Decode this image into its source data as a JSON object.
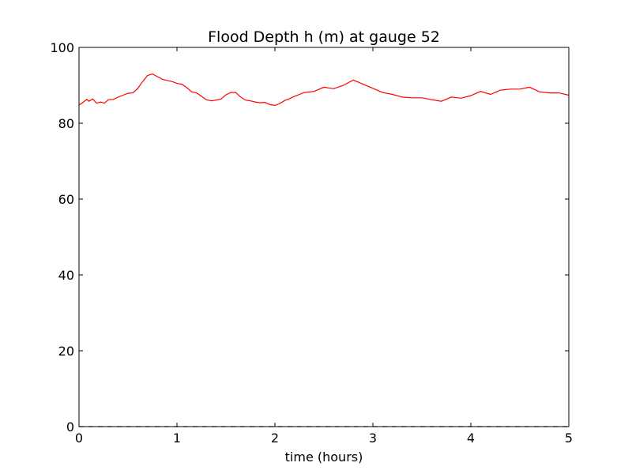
{
  "chart_data": {
    "type": "line",
    "title": "Flood Depth h (m) at gauge 52",
    "xlabel": "time (hours)",
    "ylabel": "",
    "xlim": [
      0,
      5
    ],
    "ylim": [
      0,
      100
    ],
    "xticks": [
      0,
      1,
      2,
      3,
      4,
      5
    ],
    "yticks": [
      0,
      20,
      40,
      60,
      80,
      100
    ],
    "xtick_labels": [
      "0",
      "1",
      "2",
      "3",
      "4",
      "5"
    ],
    "ytick_labels": [
      "0",
      "20",
      "40",
      "60",
      "80",
      "100"
    ],
    "grid": false,
    "legend": "none",
    "series": [
      {
        "color": "#ff0000",
        "style": "solid",
        "x": [
          0,
          0.04,
          0.08,
          0.1,
          0.14,
          0.18,
          0.22,
          0.26,
          0.3,
          0.35,
          0.4,
          0.45,
          0.5,
          0.55,
          0.6,
          0.65,
          0.7,
          0.75,
          0.8,
          0.85,
          0.9,
          0.95,
          1.0,
          1.05,
          1.1,
          1.15,
          1.2,
          1.25,
          1.3,
          1.35,
          1.4,
          1.45,
          1.5,
          1.55,
          1.6,
          1.65,
          1.7,
          1.75,
          1.8,
          1.85,
          1.9,
          1.95,
          2.0,
          2.05,
          2.1,
          2.15,
          2.2,
          2.3,
          2.4,
          2.5,
          2.6,
          2.7,
          2.8,
          2.9,
          3.0,
          3.1,
          3.2,
          3.3,
          3.4,
          3.5,
          3.6,
          3.7,
          3.8,
          3.9,
          4.0,
          4.1,
          4.2,
          4.3,
          4.4,
          4.5,
          4.6,
          4.7,
          4.8,
          4.9,
          5.0
        ],
        "values": [
          84.8,
          85.5,
          86.3,
          85.8,
          86.4,
          85.3,
          85.6,
          85.3,
          86.2,
          86.3,
          86.9,
          87.4,
          87.9,
          88.0,
          89.2,
          91.0,
          92.6,
          93.0,
          92.3,
          91.6,
          91.3,
          91.0,
          90.5,
          90.3,
          89.4,
          88.3,
          88.0,
          87.1,
          86.2,
          85.9,
          86.1,
          86.4,
          87.5,
          88.1,
          88.1,
          86.9,
          86.1,
          85.9,
          85.6,
          85.4,
          85.5,
          84.9,
          84.7,
          85.2,
          86.0,
          86.5,
          87.1,
          88.1,
          88.4,
          89.5,
          89.1,
          90.0,
          91.4,
          90.3,
          89.2,
          88.1,
          87.6,
          86.9,
          86.7,
          86.7,
          86.2,
          85.8,
          86.9,
          86.6,
          87.3,
          88.4,
          87.6,
          88.7,
          89.0,
          89.0,
          89.5,
          88.3,
          88.0,
          88.0,
          87.4
        ]
      },
      {
        "color": "#000000",
        "style": "dashed",
        "x": [
          0,
          5
        ],
        "values": [
          0,
          0
        ]
      }
    ]
  }
}
